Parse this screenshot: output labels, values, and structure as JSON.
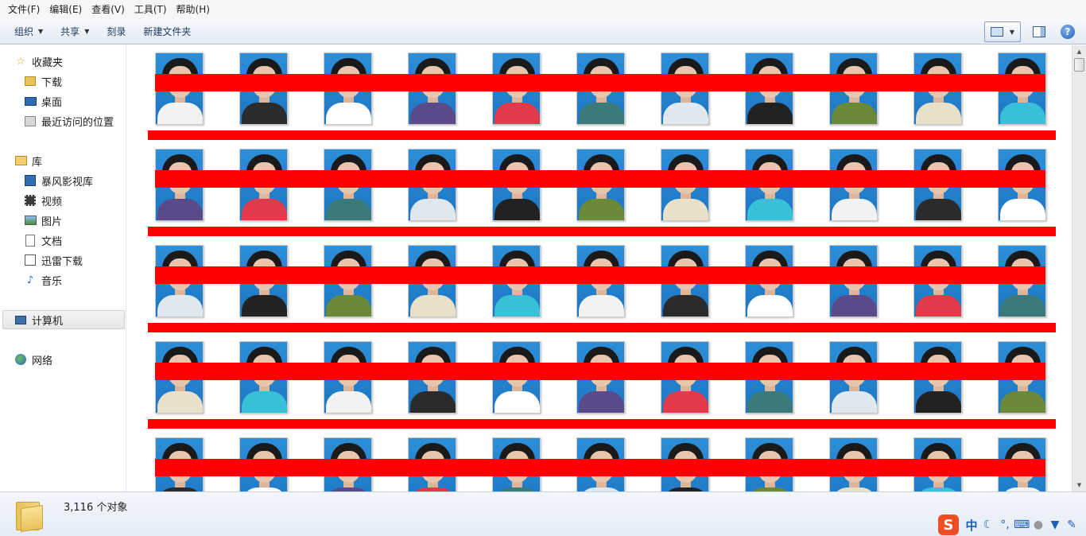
{
  "menu": [
    "文件(F)",
    "编辑(E)",
    "查看(V)",
    "工具(T)",
    "帮助(H)"
  ],
  "toolbar": {
    "organize": "组织",
    "share": "共享",
    "burn": "刻录",
    "new_folder": "新建文件夹",
    "help_glyph": "?"
  },
  "nav": {
    "favorites": "收藏夹",
    "downloads": "下载",
    "desktop": "桌面",
    "recent": "最近访问的位置",
    "libraries": "库",
    "storm_library": "暴风影视库",
    "videos": "视频",
    "pictures": "图片",
    "documents": "文档",
    "xunlei": "迅雷下载",
    "music": "音乐",
    "computer": "计算机",
    "network": "网络"
  },
  "status": {
    "count": "3,116 个对象"
  },
  "ime": {
    "logo": "S",
    "lang": "中"
  },
  "colors": {
    "redaction": "#ff0000",
    "photo_background": "#1f7fcc"
  }
}
